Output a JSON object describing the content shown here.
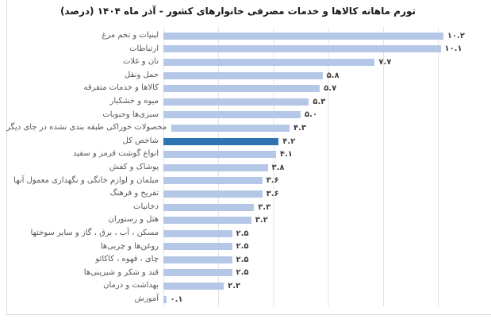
{
  "title": "تورم ماهانه کالاها و خدمات مصرفی خانوارهای کشور - آذر ماه ۱۴۰۴ (درصد)",
  "colors": {
    "bar": "#b4c7e7",
    "highlight_bar": "#2e74b0",
    "gridline": "#e3e3e3",
    "frame": "#d9d9d9",
    "label_text": "#595959",
    "value_text": "#404040",
    "title_text": "#1a1a1a"
  },
  "chart_data": {
    "type": "bar",
    "orientation": "horizontal",
    "title": "تورم ماهانه کالاها و خدمات مصرفی خانوارهای کشور - آذر ماه ۱۴۰۴ (درصد)",
    "categories": [
      "لبنیات و تخم مرغ",
      "ارتباطات",
      "نان و غلات",
      "حمل ونقل",
      "کالاها و خدمات متفرقه",
      "میوه و خشکبار",
      "سبزی‌ها وحبوبات",
      "محصولات خوراکی طبقه بندی نشده در جای دیگر",
      "شاخص کل",
      "انواع گوشت قرمز و سفید",
      "پوشاک و کفش",
      "مبلمان و لوازم خانگی و نگهداری معمول آنها",
      "تفریح و فرهنگ",
      "دخانیات",
      "هتل و رستوران",
      "مسکن ، آب ، برق ، گاز و سایر سوختها",
      "روغن‌ها و چربی‌ها",
      "چای ، قهوه ، کاکائو",
      "قند و شکر و شیرینی‌ها",
      "بهداشت و درمان",
      "آموزش"
    ],
    "values": [
      10.2,
      10.1,
      7.7,
      5.8,
      5.7,
      5.3,
      5.0,
      4.3,
      4.2,
      4.1,
      3.8,
      3.6,
      3.6,
      3.3,
      3.2,
      2.5,
      2.5,
      2.5,
      2.5,
      2.2,
      0.1
    ],
    "value_labels": [
      "۱۰.۲",
      "۱۰.۱",
      "۷.۷",
      "۵.۸",
      "۵.۷",
      "۵.۳",
      "۵.۰",
      "۴.۳",
      "۴.۲",
      "۴.۱",
      "۳.۸",
      "۳.۶",
      "۳.۶",
      "۳.۳",
      "۳.۲",
      "۲.۵",
      "۲.۵",
      "۲.۵",
      "۲.۵",
      "۲.۲",
      "۰.۱"
    ],
    "highlighted_category": "شاخص کل",
    "xlabel": "",
    "ylabel": "",
    "xlim": [
      0,
      12
    ],
    "gridline_interval": 2,
    "grid": true,
    "legend_position": "none",
    "data_labels": true
  }
}
